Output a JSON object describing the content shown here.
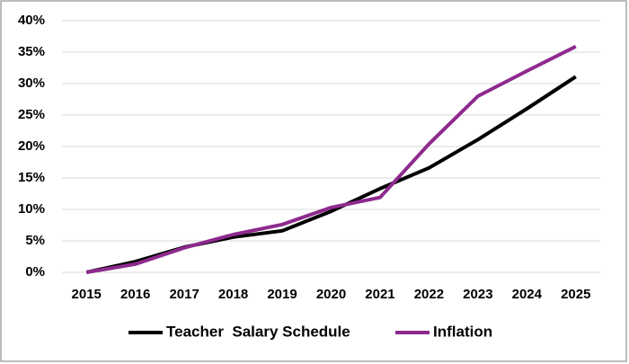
{
  "chart_data": {
    "type": "line",
    "categories": [
      "2015",
      "2016",
      "2017",
      "2018",
      "2019",
      "2020",
      "2021",
      "2022",
      "2023",
      "2024",
      "2025"
    ],
    "series": [
      {
        "name": "Teacher  Salary Schedule",
        "color": "#000000",
        "values": [
          0,
          1.7,
          4.0,
          5.6,
          6.6,
          9.7,
          13.3,
          16.6,
          21.1,
          26.0,
          31.1
        ]
      },
      {
        "name": "Inflation",
        "color": "#8e2a8e",
        "values": [
          0,
          1.3,
          3.9,
          6.0,
          7.6,
          10.3,
          11.9,
          20.4,
          28.0,
          32.0,
          35.9
        ]
      }
    ],
    "ylim": [
      0,
      40
    ],
    "yticks": [
      {
        "value": 0,
        "label": "0%"
      },
      {
        "value": 5,
        "label": "5%"
      },
      {
        "value": 10,
        "label": "10%"
      },
      {
        "value": 15,
        "label": "15%"
      },
      {
        "value": 20,
        "label": "20%"
      },
      {
        "value": 25,
        "label": "25%"
      },
      {
        "value": 30,
        "label": "30%"
      },
      {
        "value": 35,
        "label": "35%"
      },
      {
        "value": 40,
        "label": "40%"
      }
    ],
    "grid": true,
    "legend": "bottom"
  }
}
